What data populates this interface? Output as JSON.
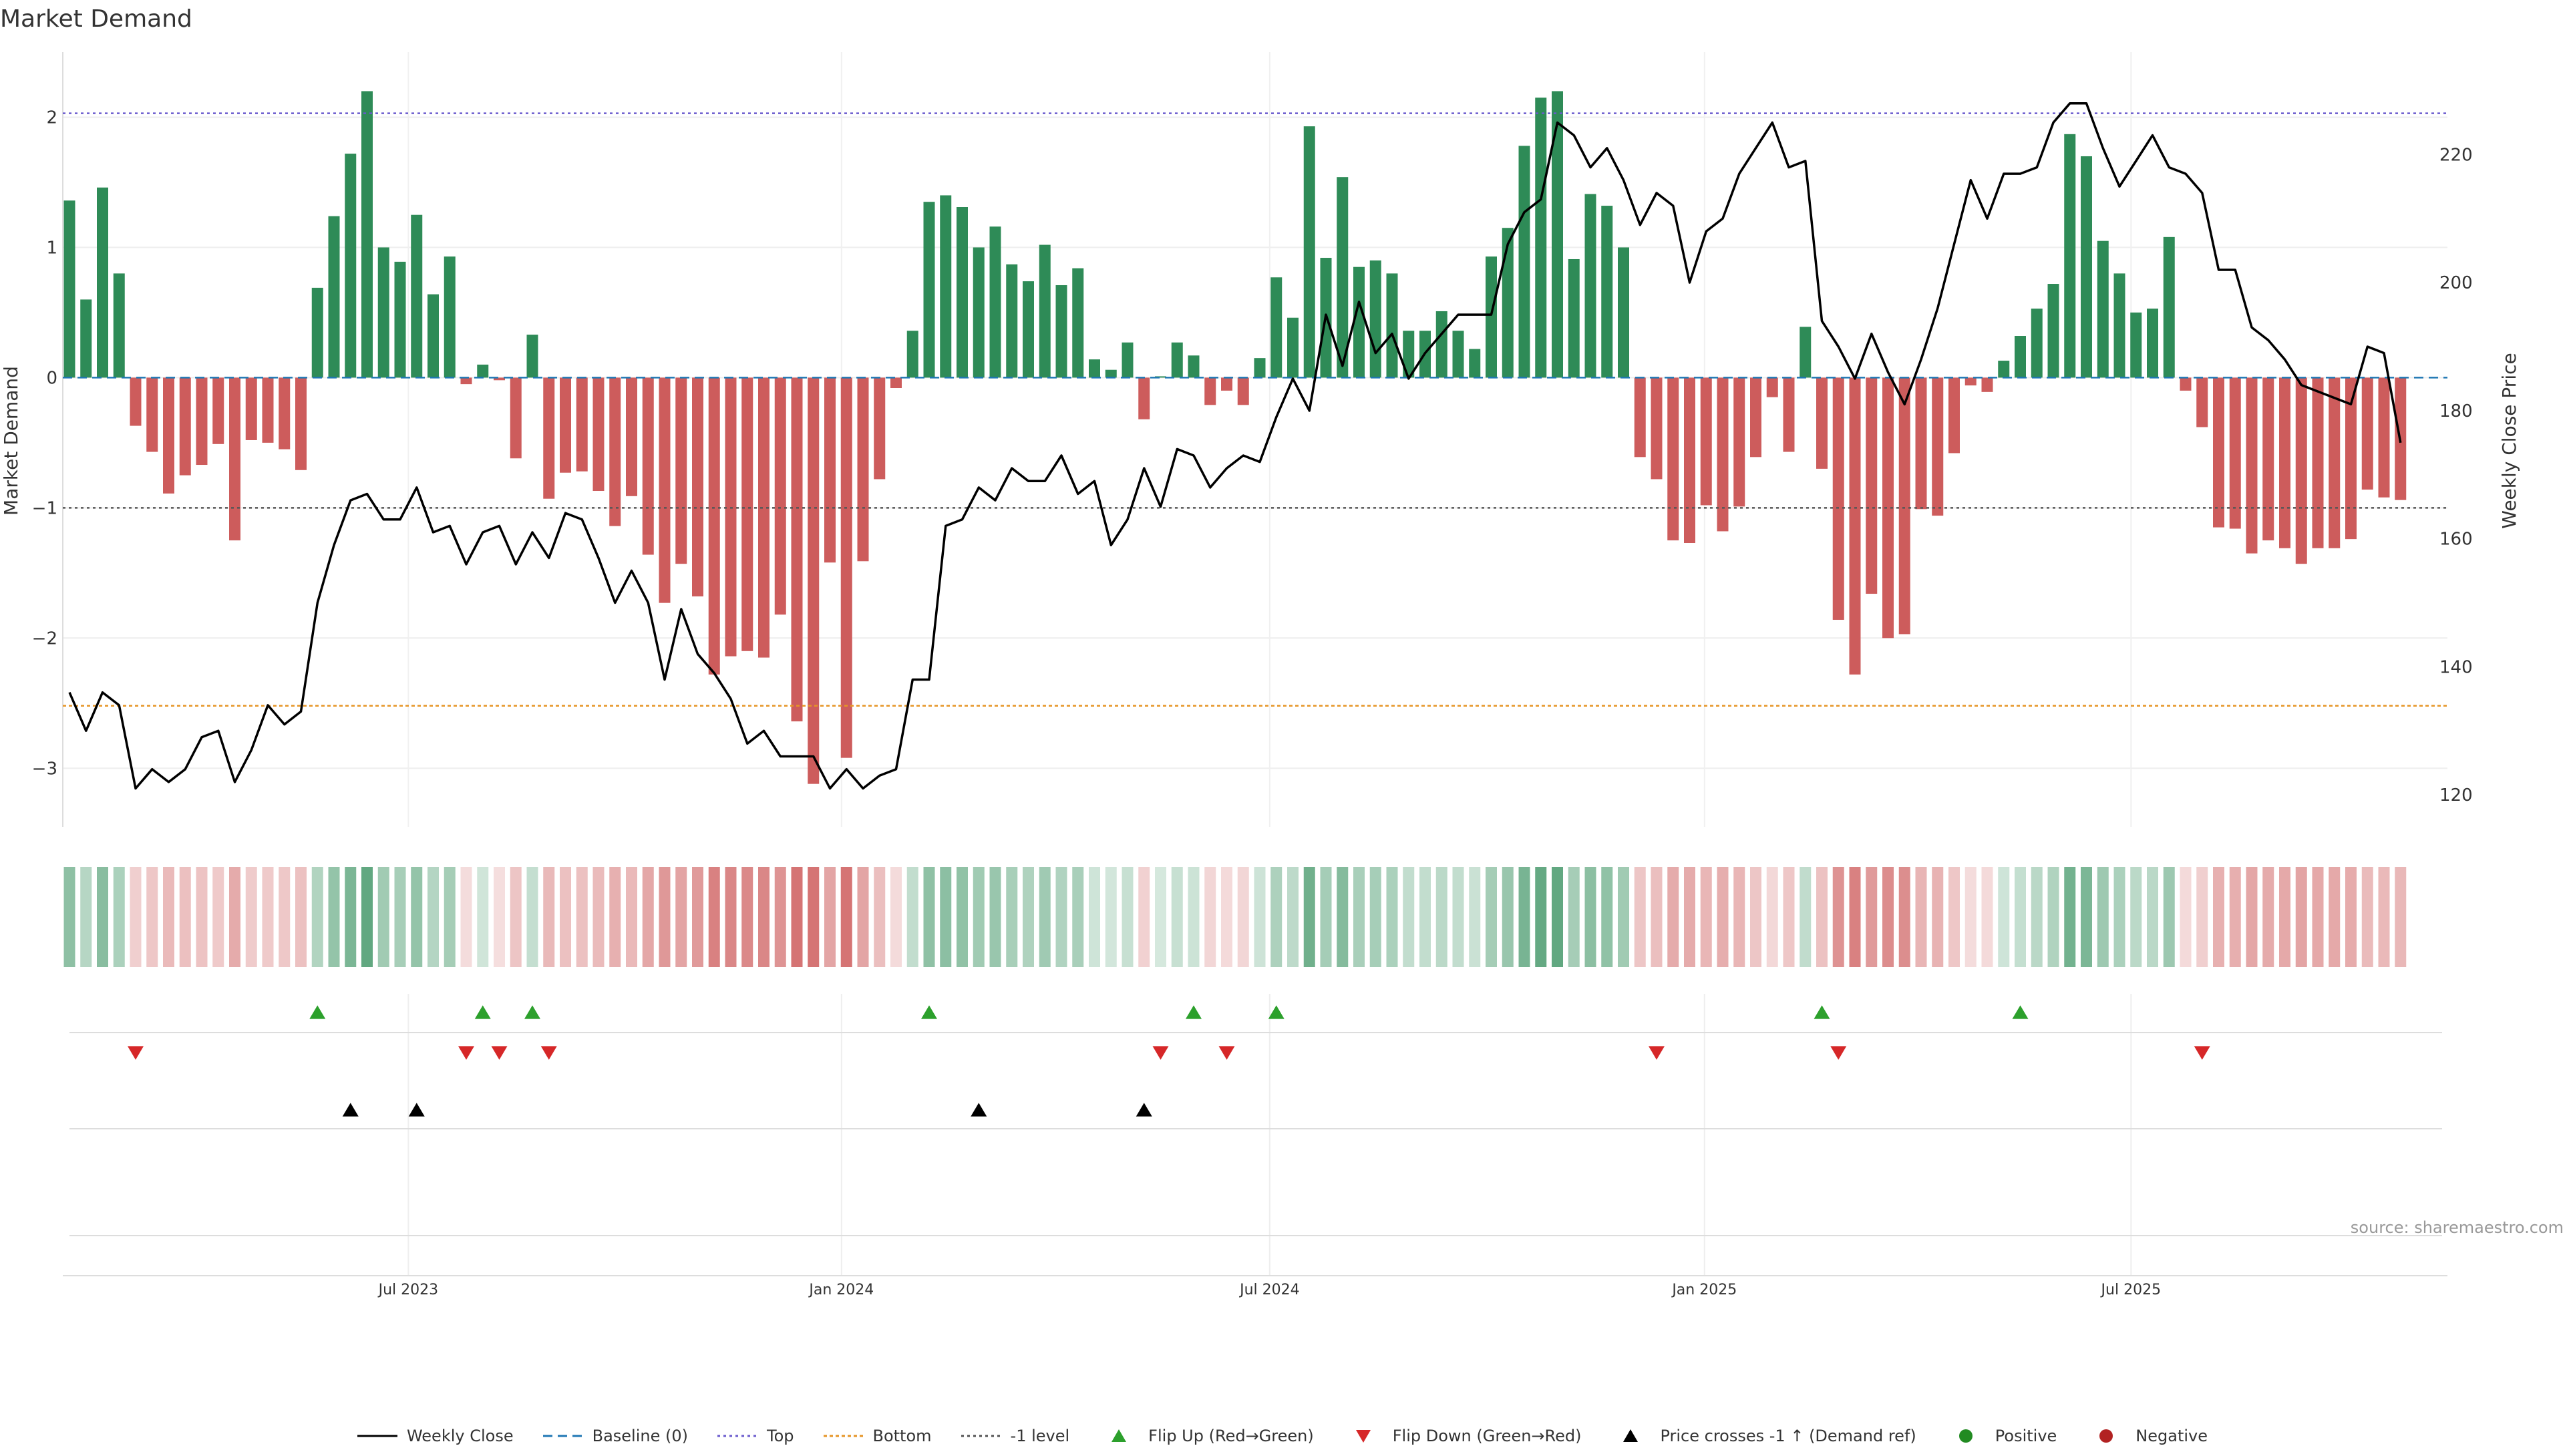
{
  "chart_data": {
    "type": "bar",
    "title": "Market Demand",
    "ylabel": "Market Demand",
    "y2label": "Weekly Close Price",
    "source_note": "source: sharemaestro.com",
    "ylim": [
      -3.45,
      2.5
    ],
    "y2lim": [
      115,
      236
    ],
    "yticks": [
      {
        "v": 2,
        "label": "2"
      },
      {
        "v": 1,
        "label": "1"
      },
      {
        "v": 0,
        "label": "0"
      },
      {
        "v": -1,
        "label": "−1"
      },
      {
        "v": -2,
        "label": "−2"
      },
      {
        "v": -3,
        "label": "−3"
      }
    ],
    "y2ticks": [
      {
        "v": 220,
        "label": "220"
      },
      {
        "v": 200,
        "label": "200"
      },
      {
        "v": 180,
        "label": "180"
      },
      {
        "v": 160,
        "label": "160"
      },
      {
        "v": 140,
        "label": "140"
      },
      {
        "v": 120,
        "label": "120"
      }
    ],
    "xticks": [
      {
        "i": 20.5,
        "label": "Jul 2023"
      },
      {
        "i": 46.7,
        "label": "Jan 2024"
      },
      {
        "i": 72.6,
        "label": "Jul 2024"
      },
      {
        "i": 98.9,
        "label": "Jan 2025"
      },
      {
        "i": 124.7,
        "label": "Jul 2025"
      }
    ],
    "reference_lines": {
      "top": 2.03,
      "baseline": 0,
      "minus_one": -1,
      "bottom": -2.52
    },
    "demand": [
      1.36,
      0.6,
      1.46,
      0.8,
      -0.37,
      -0.57,
      -0.89,
      -0.75,
      -0.67,
      -0.51,
      -1.25,
      -0.48,
      -0.5,
      -0.55,
      -0.71,
      0.69,
      1.24,
      1.72,
      2.2,
      1.0,
      0.89,
      1.25,
      0.64,
      0.93,
      -0.05,
      0.1,
      -0.02,
      -0.62,
      0.33,
      -0.93,
      -0.73,
      -0.72,
      -0.87,
      -1.14,
      -0.91,
      -1.36,
      -1.73,
      -1.43,
      -1.68,
      -2.28,
      -2.14,
      -2.1,
      -2.15,
      -1.82,
      -2.64,
      -3.12,
      -1.42,
      -2.92,
      -1.41,
      -0.78,
      -0.08,
      0.36,
      1.35,
      1.4,
      1.31,
      1.0,
      1.16,
      0.87,
      0.74,
      1.02,
      0.71,
      0.84,
      0.14,
      0.06,
      0.27,
      -0.32,
      0.01,
      0.27,
      0.17,
      -0.21,
      -0.1,
      -0.21,
      0.15,
      0.77,
      0.46,
      1.93,
      0.92,
      1.54,
      0.85,
      0.9,
      0.8,
      0.36,
      0.36,
      0.51,
      0.36,
      0.22,
      0.93,
      1.15,
      1.78,
      2.15,
      2.2,
      0.91,
      1.41,
      1.32,
      1.0,
      -0.61,
      -0.78,
      -1.25,
      -1.27,
      -0.98,
      -1.18,
      -0.99,
      -0.61,
      -0.15,
      -0.57,
      0.39,
      -0.7,
      -1.86,
      -2.28,
      -1.66,
      -2.0,
      -1.97,
      -1.01,
      -1.06,
      -0.58,
      -0.06,
      -0.11,
      0.13,
      0.32,
      0.53,
      0.72,
      1.87,
      1.7,
      1.05,
      0.8,
      0.5,
      0.53,
      1.08,
      -0.1,
      -0.38,
      -1.15,
      -1.16,
      -1.35,
      -1.25,
      -1.31,
      -1.43,
      -1.31,
      -1.31,
      -1.24,
      -0.86,
      -0.92,
      -0.94
    ],
    "close": [
      136,
      130,
      136,
      134,
      121,
      124,
      122,
      124,
      129,
      130,
      122,
      127,
      134,
      131,
      133,
      150,
      159,
      166,
      167,
      163,
      163,
      168,
      161,
      162,
      156,
      161,
      162,
      156,
      161,
      157,
      164,
      163,
      157,
      150,
      155,
      150,
      138,
      149,
      142,
      139,
      135,
      128,
      130,
      126,
      126,
      126,
      121,
      124,
      121,
      123,
      124,
      138,
      138,
      162,
      163,
      168,
      166,
      171,
      169,
      169,
      173,
      167,
      169,
      159,
      163,
      171,
      165,
      174,
      173,
      168,
      171,
      173,
      172,
      179,
      185,
      180,
      195,
      187,
      197,
      189,
      192,
      185,
      189,
      192,
      195,
      195,
      195,
      206,
      211,
      213,
      225,
      223,
      218,
      221,
      216,
      209,
      214,
      212,
      200,
      208,
      210,
      217,
      221,
      225,
      218,
      219,
      194,
      190,
      185,
      192,
      186,
      181,
      188,
      196,
      206,
      216,
      210,
      217,
      217,
      218,
      225,
      228,
      228,
      221,
      215,
      219,
      223,
      218,
      217,
      214,
      202,
      202,
      193,
      191,
      188,
      184,
      183,
      182,
      181,
      190,
      189,
      175
    ],
    "flip_up": [
      15,
      25,
      28,
      52,
      68,
      73,
      106,
      118
    ],
    "flip_down": [
      4,
      24,
      26,
      29,
      66,
      70,
      96,
      107,
      129
    ],
    "cross_up": [
      17,
      21,
      55,
      65
    ],
    "colors": {
      "positive": "#2e8b57",
      "negative": "#cd5c5c",
      "close_line": "#000000",
      "baseline": "#1f77b4",
      "top": "#6a5acd",
      "bottom": "#e69526",
      "minus_one": "#555555",
      "flip_up": "#2ca02c",
      "flip_down": "#d62728",
      "cross": "#000000",
      "positive_dot": "#228b22",
      "negative_dot": "#b22222"
    },
    "legend": [
      {
        "key": "close",
        "label": "Weekly Close"
      },
      {
        "key": "baseline",
        "label": "Baseline (0)"
      },
      {
        "key": "top",
        "label": "Top"
      },
      {
        "key": "bottom",
        "label": "Bottom"
      },
      {
        "key": "minus_one",
        "label": "-1 level"
      },
      {
        "key": "flip_up",
        "label": "Flip Up (Red→Green)"
      },
      {
        "key": "flip_down",
        "label": "Flip Down (Green→Red)"
      },
      {
        "key": "cross",
        "label": "Price crosses -1 ↑ (Demand ref)"
      },
      {
        "key": "positive",
        "label": "Positive"
      },
      {
        "key": "negative",
        "label": "Negative"
      }
    ]
  }
}
